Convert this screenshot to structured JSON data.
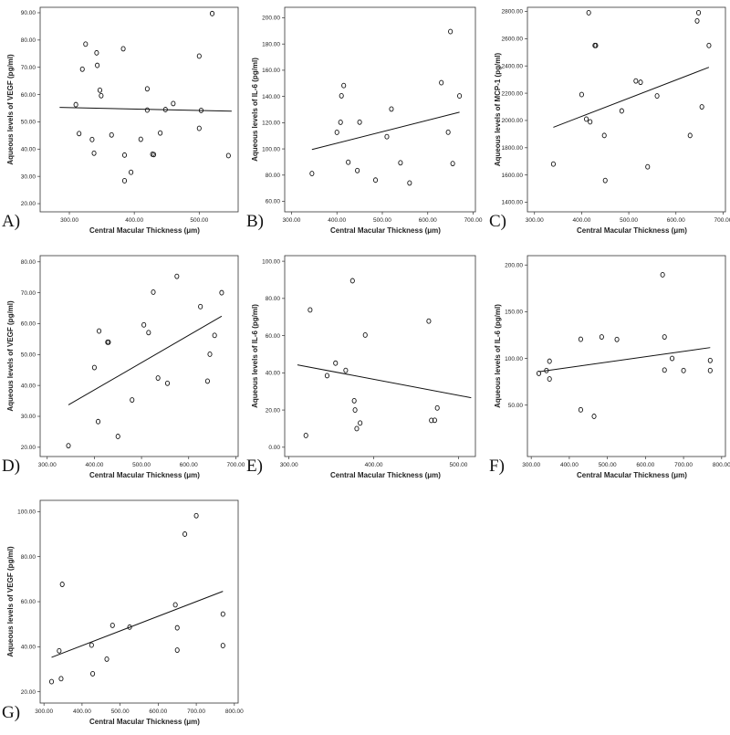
{
  "chart_data": [
    {
      "id": "A",
      "panel_label": "A)",
      "type": "scatter",
      "xlabel": "Central Macular Thickness (μm)",
      "ylabel": "Aqueous levels of VEGF (pg/ml)",
      "xlim": [
        255,
        560
      ],
      "ylim": [
        17,
        92
      ],
      "xticks": [
        300,
        400,
        500
      ],
      "yticks": [
        20,
        30,
        40,
        50,
        60,
        70,
        80,
        90
      ],
      "points": [
        [
          310,
          56.3
        ],
        [
          315,
          45.7
        ],
        [
          320,
          69.3
        ],
        [
          325,
          78.5
        ],
        [
          335,
          43.5
        ],
        [
          338,
          38.5
        ],
        [
          342,
          75.3
        ],
        [
          343,
          70.7
        ],
        [
          347,
          61.6
        ],
        [
          349,
          59.6
        ],
        [
          365,
          45.2
        ],
        [
          383,
          76.8
        ],
        [
          385,
          37.8
        ],
        [
          385,
          28.4
        ],
        [
          395,
          31.5
        ],
        [
          410,
          43.6
        ],
        [
          420,
          54.3
        ],
        [
          420,
          62.1
        ],
        [
          428,
          38.1
        ],
        [
          430,
          38.0
        ],
        [
          440,
          45.9
        ],
        [
          448,
          54.5
        ],
        [
          460,
          56.7
        ],
        [
          500,
          47.6
        ],
        [
          500,
          74.1
        ],
        [
          503,
          54.2
        ],
        [
          520,
          89.7
        ],
        [
          545,
          37.6
        ]
      ],
      "fit": [
        [
          285,
          55.3
        ],
        [
          550,
          53.9
        ]
      ]
    },
    {
      "id": "B",
      "panel_label": "B)",
      "type": "scatter",
      "xlabel": "Central Macular Thickness (μm)",
      "ylabel": "Aqueous levels of IL-6 (pg/ml)",
      "xlim": [
        285,
        705
      ],
      "ylim": [
        52,
        208
      ],
      "xticks": [
        300,
        400,
        500,
        600,
        700
      ],
      "yticks": [
        60,
        80,
        100,
        120,
        140,
        160,
        180,
        200
      ],
      "points": [
        [
          345,
          81.2
        ],
        [
          400,
          112.6
        ],
        [
          408,
          120.3
        ],
        [
          410,
          140.5
        ],
        [
          415,
          148.3
        ],
        [
          425,
          89.8
        ],
        [
          445,
          83.5
        ],
        [
          450,
          120.4
        ],
        [
          485,
          76.2
        ],
        [
          510,
          109.3
        ],
        [
          520,
          130.4
        ],
        [
          540,
          89.4
        ],
        [
          560,
          74.0
        ],
        [
          630,
          150.5
        ],
        [
          645,
          112.7
        ],
        [
          650,
          189.5
        ],
        [
          655,
          88.8
        ],
        [
          670,
          140.4
        ]
      ],
      "fit": [
        [
          345,
          99.5
        ],
        [
          670,
          128.0
        ]
      ]
    },
    {
      "id": "C",
      "panel_label": "C)",
      "type": "scatter",
      "xlabel": "Central Macular Thickness (μm)",
      "ylabel": "Aqueous levels of MCP-1 (pg/ml)",
      "xlim": [
        285,
        705
      ],
      "ylim": [
        1330,
        2830
      ],
      "xticks": [
        300,
        400,
        500,
        600,
        700
      ],
      "yticks": [
        1400,
        1600,
        1800,
        2000,
        2200,
        2400,
        2600,
        2800
      ],
      "points": [
        [
          340,
          1680
        ],
        [
          400,
          2190
        ],
        [
          410,
          2010
        ],
        [
          415,
          2790
        ],
        [
          418,
          1990
        ],
        [
          428,
          2550
        ],
        [
          430,
          2550
        ],
        [
          448,
          1890
        ],
        [
          450,
          1560
        ],
        [
          485,
          2070
        ],
        [
          515,
          2290
        ],
        [
          525,
          2280
        ],
        [
          540,
          1660
        ],
        [
          560,
          2180
        ],
        [
          630,
          1890
        ],
        [
          645,
          2730
        ],
        [
          648,
          2790
        ],
        [
          655,
          2100
        ],
        [
          670,
          2550
        ]
      ],
      "fit": [
        [
          340,
          1950
        ],
        [
          670,
          2390
        ]
      ]
    },
    {
      "id": "D",
      "panel_label": "D)",
      "type": "scatter",
      "xlabel": "Central Macular Thickness (μm)",
      "ylabel": "Aqueous levels of VEGF (pg/ml)",
      "xlim": [
        285,
        705
      ],
      "ylim": [
        17,
        82
      ],
      "xticks": [
        300,
        400,
        500,
        600,
        700
      ],
      "yticks": [
        20,
        30,
        40,
        50,
        60,
        70,
        80
      ],
      "points": [
        [
          345,
          20.5
        ],
        [
          400,
          45.8
        ],
        [
          408,
          28.3
        ],
        [
          410,
          57.6
        ],
        [
          428,
          54.0
        ],
        [
          430,
          54.0
        ],
        [
          450,
          23.5
        ],
        [
          480,
          35.3
        ],
        [
          505,
          59.6
        ],
        [
          515,
          57.1
        ],
        [
          525,
          70.2
        ],
        [
          535,
          42.4
        ],
        [
          555,
          40.7
        ],
        [
          575,
          75.3
        ],
        [
          625,
          65.5
        ],
        [
          640,
          41.4
        ],
        [
          645,
          50.1
        ],
        [
          655,
          56.2
        ],
        [
          670,
          70.0
        ]
      ],
      "fit": [
        [
          345,
          33.7
        ],
        [
          670,
          62.4
        ]
      ]
    },
    {
      "id": "E",
      "panel_label": "E)",
      "type": "scatter",
      "xlabel": "Central Macular Thickness (μm)",
      "ylabel": "Aqueous levels of IL-6 (pg/ml)",
      "xlim": [
        295,
        520
      ],
      "ylim": [
        -5,
        103
      ],
      "xticks": [
        300,
        400,
        500
      ],
      "yticks": [
        0,
        20,
        40,
        60,
        80,
        100
      ],
      "points": [
        [
          320,
          6.3
        ],
        [
          325,
          73.8
        ],
        [
          345,
          38.5
        ],
        [
          355,
          45.2
        ],
        [
          367,
          41.3
        ],
        [
          375,
          89.5
        ],
        [
          377,
          25.0
        ],
        [
          378,
          20.0
        ],
        [
          380,
          10.0
        ],
        [
          384,
          13.0
        ],
        [
          390,
          60.3
        ],
        [
          465,
          67.8
        ],
        [
          468,
          14.4
        ],
        [
          472,
          14.5
        ],
        [
          475,
          21.1
        ]
      ],
      "fit": [
        [
          310,
          44.3
        ],
        [
          515,
          26.6
        ]
      ]
    },
    {
      "id": "F",
      "panel_label": "F)",
      "type": "scatter",
      "xlabel": "Central Macular Thickness (μm)",
      "ylabel": "Aqueous levels of IL-6 (pg/ml)",
      "xlim": [
        290,
        810
      ],
      "ylim": [
        -5,
        210
      ],
      "xticks": [
        300,
        400,
        500,
        600,
        700,
        800
      ],
      "yticks": [
        50,
        100,
        150,
        200
      ],
      "points": [
        [
          320,
          84.0
        ],
        [
          340,
          87.0
        ],
        [
          348,
          97.0
        ],
        [
          348,
          78.0
        ],
        [
          430,
          120.5
        ],
        [
          430,
          45.0
        ],
        [
          465,
          38.0
        ],
        [
          485,
          123.0
        ],
        [
          525,
          120.3
        ],
        [
          645,
          189.5
        ],
        [
          650,
          123.0
        ],
        [
          650,
          87.5
        ],
        [
          670,
          100.0
        ],
        [
          700,
          87.0
        ],
        [
          770,
          97.8
        ],
        [
          770,
          87.0
        ]
      ],
      "fit": [
        [
          320,
          85.8
        ],
        [
          770,
          111.6
        ]
      ]
    },
    {
      "id": "G",
      "panel_label": "G)",
      "type": "scatter",
      "xlabel": "Central Macular Thickness (μm)",
      "ylabel": "Aqueous levels of VEGF (pg/ml)",
      "xlim": [
        290,
        810
      ],
      "ylim": [
        15,
        105
      ],
      "xticks": [
        300,
        400,
        500,
        600,
        700,
        800
      ],
      "yticks": [
        20,
        40,
        60,
        80,
        100
      ],
      "points": [
        [
          320,
          24.5
        ],
        [
          340,
          38.2
        ],
        [
          345,
          25.8
        ],
        [
          348,
          67.7
        ],
        [
          425,
          40.7
        ],
        [
          428,
          28.0
        ],
        [
          465,
          34.5
        ],
        [
          480,
          49.5
        ],
        [
          525,
          48.7
        ],
        [
          645,
          58.6
        ],
        [
          650,
          38.5
        ],
        [
          650,
          48.4
        ],
        [
          670,
          90.0
        ],
        [
          700,
          98.2
        ],
        [
          770,
          54.5
        ],
        [
          770,
          40.5
        ]
      ],
      "fit": [
        [
          320,
          35.3
        ],
        [
          770,
          64.6
        ]
      ]
    }
  ]
}
